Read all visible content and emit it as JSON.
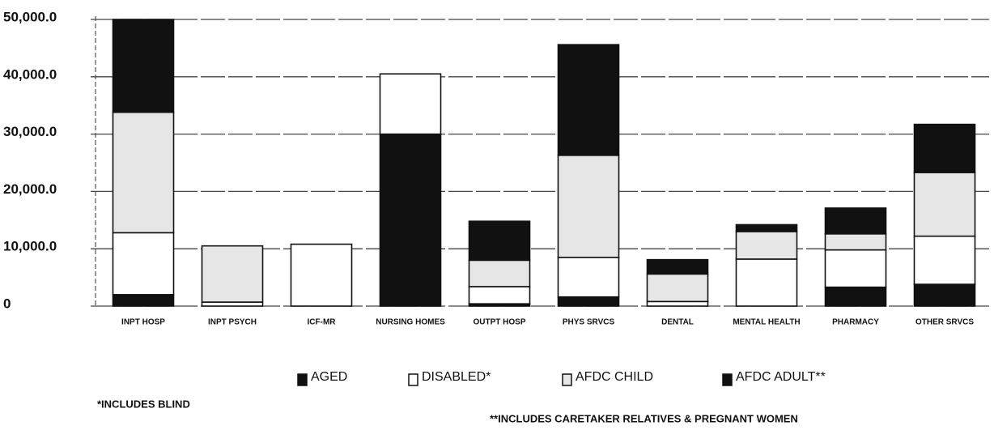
{
  "chart_data": {
    "type": "stacked_bar",
    "categories": [
      "INPT HOSP",
      "INPT PSYCH",
      "ICF-MR",
      "NURSING HOMES",
      "OUTPT HOSP",
      "PHYS SRVCS",
      "DENTAL",
      "MENTAL HEALTH",
      "PHARMACY",
      "OTHER SRVCS"
    ],
    "series": [
      {
        "name": "AGED",
        "color": "#111111",
        "values": [
          2000,
          0,
          0,
          30000,
          400,
          1600,
          0,
          0,
          3300,
          3800
        ]
      },
      {
        "name": "DISABLED*",
        "color": "#ffffff",
        "values": [
          10800,
          700,
          10800,
          10500,
          3000,
          6900,
          800,
          8200,
          6500,
          8400
        ]
      },
      {
        "name": "AFDC CHILD",
        "color": "#e6e6e6",
        "values": [
          21000,
          9800,
          0,
          0,
          4600,
          17800,
          4800,
          4800,
          2800,
          11100
        ]
      },
      {
        "name": "AFDC ADULT**",
        "color": "#111111",
        "values": [
          16200,
          0,
          0,
          0,
          6800,
          19300,
          2500,
          1200,
          4500,
          8400
        ]
      }
    ],
    "ylim": [
      0,
      50000
    ],
    "yticks": [
      0,
      {
        "value": 10000,
        "label": "10,000.0"
      },
      {
        "value": 20000,
        "label": "20,000.0"
      },
      {
        "value": 30000,
        "label": "30,000.0"
      },
      {
        "value": 40000,
        "label": "40,000.0"
      },
      {
        "value": 50000,
        "label": "50,000.0"
      }
    ],
    "grid": true,
    "footnotes": [
      "*INCLUDES BLIND",
      "**INCLUDES CARETAKER RELATIVES & PREGNANT WOMEN"
    ]
  }
}
